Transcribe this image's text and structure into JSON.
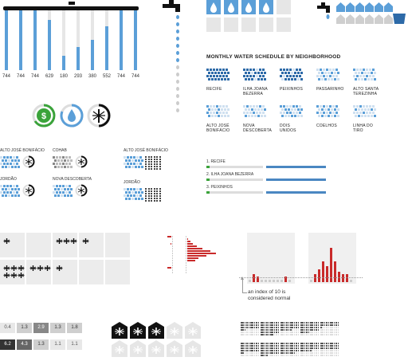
{
  "top_tubes": {
    "values": [
      "744",
      "744",
      "744",
      "629",
      "180",
      "293",
      "380",
      "552",
      "744",
      "744"
    ],
    "fill_fractions": [
      1,
      1,
      1,
      0.84,
      0.24,
      0.39,
      0.51,
      0.74,
      1,
      1
    ]
  },
  "icons": {
    "money": "dollar-icon",
    "drop": "water-drop-icon",
    "mosquito": "mosquito-icon",
    "faucet": "faucet-icon",
    "house": "house-icon",
    "bucket": "bucket-icon"
  },
  "colors": {
    "blue": "#5b9fd8",
    "dark_blue": "#2d6aa8",
    "green": "#3aa33a",
    "red": "#c92a2a",
    "gray": "#e6e6e6"
  },
  "schedule": {
    "title": "MONTHLY WATER SCHEDULE BY NEIGHBORHOOD",
    "neighborhoods": [
      {
        "name": "RECIFE"
      },
      {
        "name": "ILHA JOANA BEZERRA"
      },
      {
        "name": "PEIXINHOS"
      },
      {
        "name": "PASSARINHO"
      },
      {
        "name": "ALTO SANTA TEREZINHA"
      },
      {
        "name": "ALTO JOSÉ BONIFÁCIO"
      },
      {
        "name": "NOVA DESCOBERTA"
      },
      {
        "name": "DOIS UNIDOS"
      },
      {
        "name": "COELHOS"
      },
      {
        "name": "LINHA DO TIRO"
      }
    ]
  },
  "small_groups": {
    "a": "ALTO JOSÉ BONIFÁCIO",
    "b": "COHAB",
    "c": "JORDÃO",
    "d": "NOVA DESCOBERTA",
    "e": "ALTO JOSÉ BONIFÁCIO",
    "f": "JORDÃO"
  },
  "ranking": {
    "items": [
      {
        "label": "1. RECIFE"
      },
      {
        "label": "2. ILHA JOANA BEZERRA"
      },
      {
        "label": "3. PEIXINHOS"
      }
    ]
  },
  "annotation": {
    "text": "an index of 10 is considered normal"
  },
  "grid_values": {
    "row1": [
      "0.4",
      "1.3",
      "2.9",
      "1.3",
      "1.8"
    ],
    "row2": [
      "6.2",
      "4.3",
      "1.3",
      "1.1",
      "1.1"
    ]
  }
}
